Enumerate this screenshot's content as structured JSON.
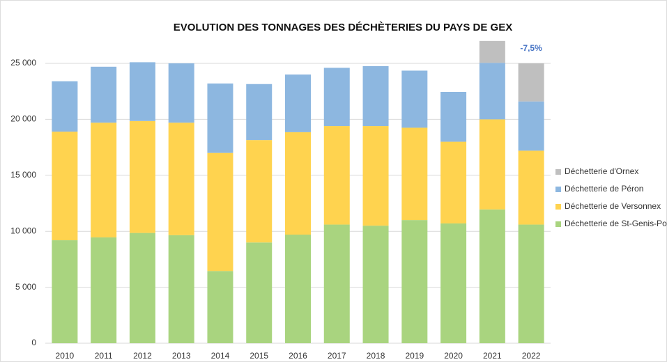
{
  "chart_data": {
    "type": "stacked_bar",
    "title": "EVOLUTION DES TONNAGES DES DÉCHÈTERIES DU PAYS DE GEX",
    "annotation": "-7,5%",
    "categories": [
      "2010",
      "2011",
      "2012",
      "2013",
      "2014",
      "2015",
      "2016",
      "2017",
      "2018",
      "2019",
      "2020",
      "2021",
      "2022"
    ],
    "series": [
      {
        "name": "Déchetterie de St-Genis-Pouilly",
        "color": "#a9d47f",
        "values": [
          9200,
          9450,
          9850,
          9650,
          6450,
          9000,
          9700,
          10600,
          10500,
          11000,
          10700,
          11950,
          10600
        ]
      },
      {
        "name": "Déchetterie de Versonnex",
        "color": "#ffd34f",
        "values": [
          9700,
          10250,
          10000,
          10050,
          10550,
          9150,
          9150,
          8800,
          8900,
          8250,
          7300,
          8050,
          6600
        ]
      },
      {
        "name": "Déchetterie de Péron",
        "color": "#8db7e0",
        "values": [
          4500,
          5000,
          5250,
          5300,
          6200,
          5000,
          5150,
          5200,
          5350,
          5100,
          4450,
          5050,
          4400
        ]
      },
      {
        "name": "Déchetterie d'Ornex",
        "color": "#bfbfbf",
        "values": [
          null,
          null,
          null,
          null,
          null,
          null,
          null,
          null,
          null,
          null,
          null,
          1950,
          3400
        ]
      }
    ],
    "ylim": [
      0,
      27500
    ],
    "yticks": [
      0,
      {
        "value": 5000,
        "label": "5 000"
      },
      {
        "value": 10000,
        "label": "10 000"
      },
      {
        "value": 15000,
        "label": "15 000"
      },
      {
        "value": 20000,
        "label": "20 000"
      },
      {
        "value": 25000,
        "label": "25 000"
      }
    ],
    "grid": true,
    "legend": "right"
  }
}
